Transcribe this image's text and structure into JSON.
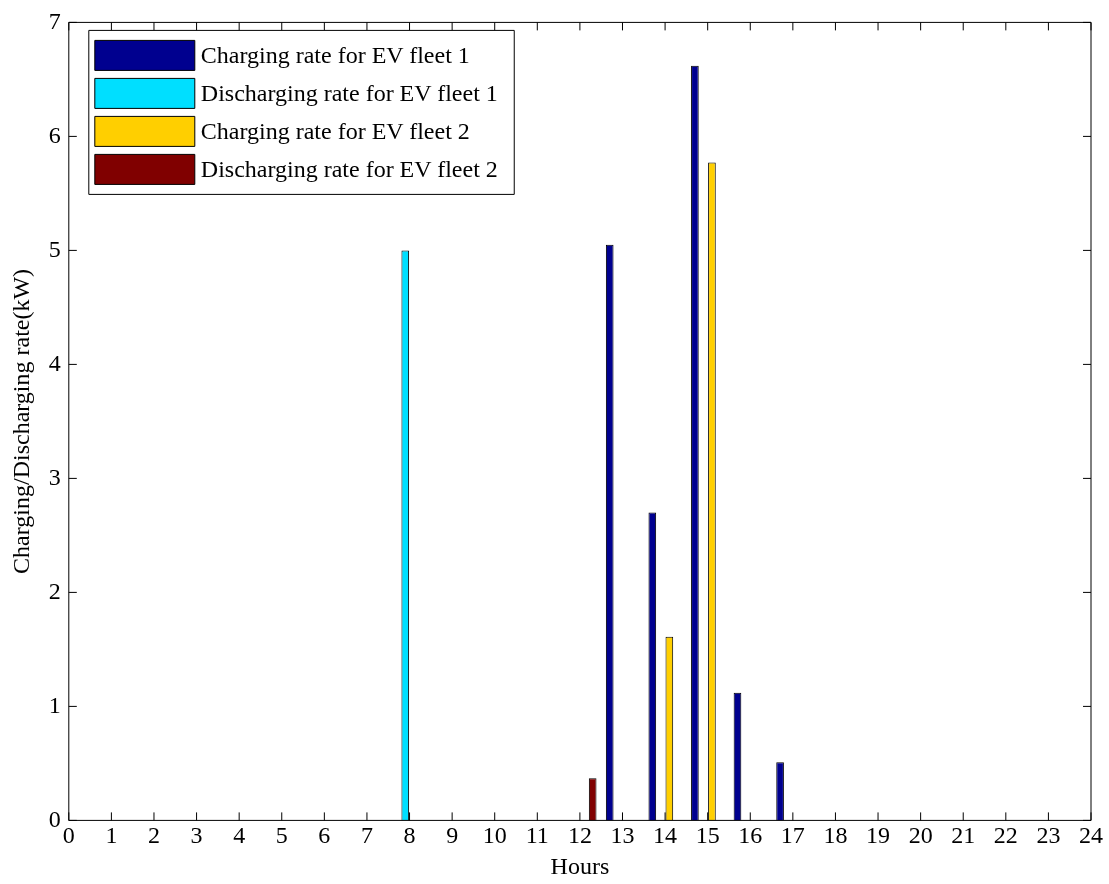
{
  "chart_data": {
    "type": "bar",
    "xlabel": "Hours",
    "ylabel": "Charging/Discharging rate(kW)",
    "x": [
      1,
      2,
      3,
      4,
      5,
      6,
      7,
      8,
      9,
      10,
      11,
      12,
      13,
      14,
      15,
      16,
      17,
      18,
      19,
      20,
      21,
      22,
      23,
      24
    ],
    "xlim": [
      0,
      24
    ],
    "xticks": [
      0,
      1,
      2,
      3,
      4,
      5,
      6,
      7,
      8,
      9,
      10,
      11,
      12,
      13,
      14,
      15,
      16,
      17,
      18,
      19,
      20,
      21,
      22,
      23,
      24
    ],
    "ylim": [
      0,
      7
    ],
    "yticks": [
      0,
      1,
      2,
      3,
      4,
      5,
      6,
      7
    ],
    "grid": false,
    "legend": "top left",
    "series": [
      {
        "name": "Charging rate for EV fleet 1",
        "color": "#00008f",
        "values": [
          0,
          0,
          0,
          0,
          0,
          0,
          0,
          0,
          0,
          0,
          0,
          0,
          5.05,
          2.7,
          6.62,
          1.12,
          0.51,
          0,
          0,
          0,
          0,
          0,
          0,
          0
        ]
      },
      {
        "name": "Discharging rate for EV fleet 1",
        "color": "#00dfff",
        "values": [
          0,
          0,
          0,
          0,
          0,
          0,
          0,
          5.0,
          0,
          0,
          0,
          0,
          0,
          0,
          0,
          0,
          0,
          0,
          0,
          0,
          0,
          0,
          0,
          0
        ]
      },
      {
        "name": "Charging rate for EV fleet 2",
        "color": "#ffcf00",
        "values": [
          0,
          0,
          0,
          0,
          0,
          0,
          0,
          0,
          0,
          0,
          0,
          0,
          0,
          1.61,
          5.77,
          0,
          0,
          0,
          0,
          0,
          0,
          0,
          0,
          0
        ]
      },
      {
        "name": "Discharging rate for EV fleet 2",
        "color": "#800000",
        "values": [
          0,
          0,
          0,
          0,
          0,
          0,
          0,
          0,
          0,
          0,
          0,
          0.37,
          0,
          0,
          0,
          0,
          0,
          0,
          0,
          0,
          0,
          0,
          0,
          0
        ]
      }
    ]
  }
}
